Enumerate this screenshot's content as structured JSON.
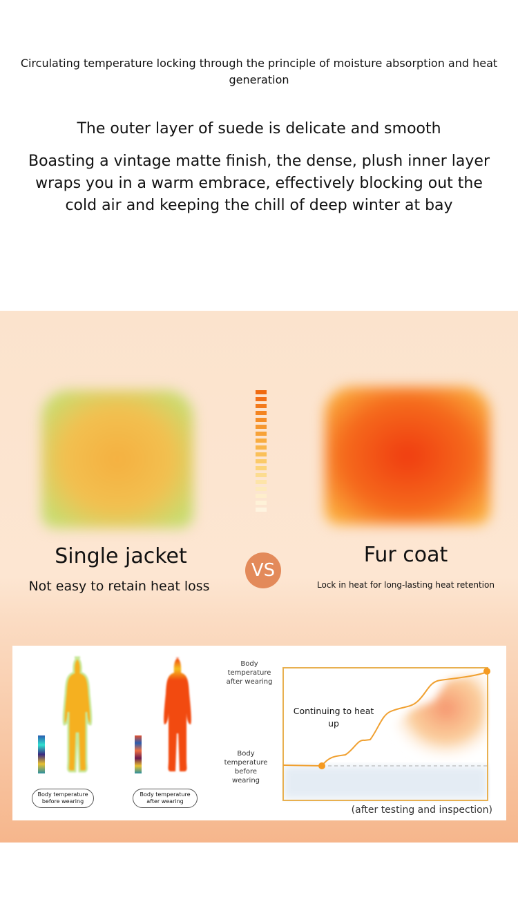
{
  "intro": "Circulating temperature locking through the principle of moisture absorption and heat generation",
  "headline": "The outer layer of suede is delicate and smooth",
  "body": "Boasting a vintage matte finish, the dense, plush inner layer wraps you in a warm embrace, effectively blocking out the cold air and keeping the chill of deep winter at bay",
  "comparison": {
    "left": {
      "title": "Single jacket",
      "subtitle": "Not easy to retain heat loss"
    },
    "vs": "VS",
    "right": {
      "title": "Fur coat",
      "subtitle": "Lock in heat for long-lasting heat retention"
    }
  },
  "thermal": {
    "before_label": "Body temperature before wearing",
    "after_label": "Body temperature after wearing"
  },
  "graph": {
    "y_top_label": "Body temperature after wearing",
    "y_bottom_label": "Body temperature before wearing",
    "annotation": "Continuing to heat up",
    "footnote": "(after testing and inspection)",
    "line_color": "#f0a030"
  },
  "colors": {
    "accent": "#e38a5a",
    "hot": "#f03c10",
    "warm": "#f5b040"
  }
}
